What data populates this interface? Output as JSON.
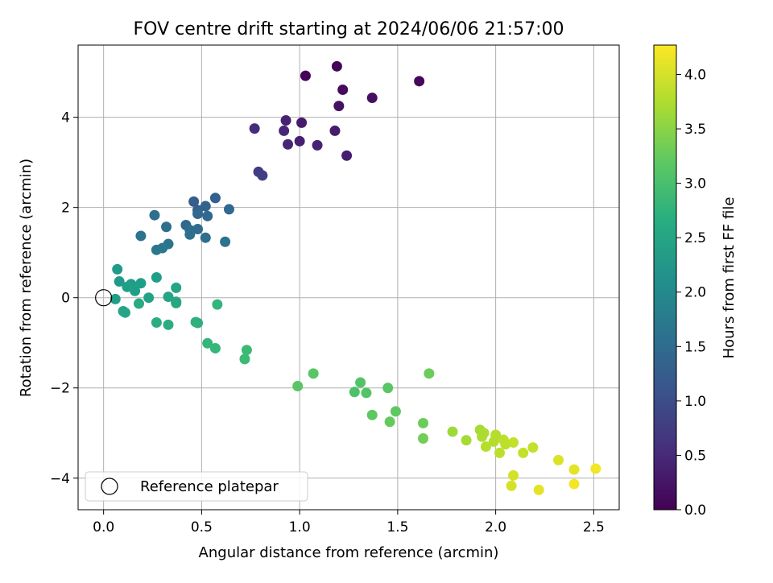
{
  "chart_data": {
    "type": "scatter",
    "title": "FOV centre drift starting at 2024/06/06 21:57:00",
    "xlabel": "Angular distance from reference (arcmin)",
    "ylabel": "Rotation from reference (arcmin)",
    "xlim": [
      -0.13,
      2.63
    ],
    "ylim": [
      -4.7,
      5.6
    ],
    "x_ticks": [
      0.0,
      0.5,
      1.0,
      1.5,
      2.0,
      2.5
    ],
    "x_tick_labels": [
      "0.0",
      "0.5",
      "1.0",
      "1.5",
      "2.0",
      "2.5"
    ],
    "y_ticks": [
      -4,
      -2,
      0,
      2,
      4
    ],
    "y_tick_labels": [
      "−4",
      "−2",
      "0",
      "2",
      "4"
    ],
    "grid": true,
    "colormap": "viridis",
    "colorbar": {
      "label": "Hours from first FF file",
      "range": [
        0.0,
        4.27
      ],
      "ticks": [
        0.0,
        0.5,
        1.0,
        1.5,
        2.0,
        2.5,
        3.0,
        3.5,
        4.0
      ],
      "tick_labels": [
        "0.0",
        "0.5",
        "1.0",
        "1.5",
        "2.0",
        "2.5",
        "3.0",
        "3.5",
        "4.0"
      ]
    },
    "legend": {
      "placement": "lower-left",
      "entries": [
        {
          "label": "Reference platepar",
          "marker": "open-circle"
        }
      ]
    },
    "reference_point": {
      "x": 0.0,
      "y": 0.0
    },
    "series": [
      {
        "points": [
          {
            "x": 1.03,
            "y": 4.92,
            "c": 0.05
          },
          {
            "x": 1.19,
            "y": 5.13,
            "c": 0.05
          },
          {
            "x": 1.61,
            "y": 4.8,
            "c": 0.08
          },
          {
            "x": 1.22,
            "y": 4.61,
            "c": 0.12
          },
          {
            "x": 1.37,
            "y": 4.43,
            "c": 0.18
          },
          {
            "x": 1.2,
            "y": 4.25,
            "c": 0.2
          },
          {
            "x": 0.93,
            "y": 3.93,
            "c": 0.4
          },
          {
            "x": 1.01,
            "y": 3.88,
            "c": 0.3
          },
          {
            "x": 0.77,
            "y": 3.75,
            "c": 0.55
          },
          {
            "x": 0.92,
            "y": 3.7,
            "c": 0.45
          },
          {
            "x": 1.18,
            "y": 3.7,
            "c": 0.33
          },
          {
            "x": 1.0,
            "y": 3.47,
            "c": 0.38
          },
          {
            "x": 0.94,
            "y": 3.4,
            "c": 0.45
          },
          {
            "x": 1.09,
            "y": 3.38,
            "c": 0.4
          },
          {
            "x": 1.24,
            "y": 3.15,
            "c": 0.35
          },
          {
            "x": 0.79,
            "y": 2.79,
            "c": 0.75
          },
          {
            "x": 0.81,
            "y": 2.71,
            "c": 0.8
          },
          {
            "x": 0.57,
            "y": 2.21,
            "c": 1.3
          },
          {
            "x": 0.46,
            "y": 2.13,
            "c": 1.25
          },
          {
            "x": 0.52,
            "y": 2.03,
            "c": 1.35
          },
          {
            "x": 0.48,
            "y": 1.94,
            "c": 1.3
          },
          {
            "x": 0.64,
            "y": 1.96,
            "c": 1.45
          },
          {
            "x": 0.48,
            "y": 1.86,
            "c": 1.4
          },
          {
            "x": 0.26,
            "y": 1.83,
            "c": 1.55
          },
          {
            "x": 0.53,
            "y": 1.81,
            "c": 1.45
          },
          {
            "x": 0.42,
            "y": 1.61,
            "c": 1.45
          },
          {
            "x": 0.32,
            "y": 1.57,
            "c": 1.55
          },
          {
            "x": 0.44,
            "y": 1.5,
            "c": 1.5
          },
          {
            "x": 0.48,
            "y": 1.52,
            "c": 1.5
          },
          {
            "x": 0.44,
            "y": 1.4,
            "c": 1.55
          },
          {
            "x": 0.19,
            "y": 1.37,
            "c": 1.6
          },
          {
            "x": 0.52,
            "y": 1.33,
            "c": 1.55
          },
          {
            "x": 0.62,
            "y": 1.24,
            "c": 1.6
          },
          {
            "x": 0.33,
            "y": 1.19,
            "c": 1.65
          },
          {
            "x": 0.3,
            "y": 1.1,
            "c": 1.7
          },
          {
            "x": 0.27,
            "y": 1.06,
            "c": 1.7
          },
          {
            "x": 0.07,
            "y": 0.63,
            "c": 2.3
          },
          {
            "x": 0.27,
            "y": 0.45,
            "c": 2.4
          },
          {
            "x": 0.08,
            "y": 0.36,
            "c": 2.3
          },
          {
            "x": 0.19,
            "y": 0.32,
            "c": 2.4
          },
          {
            "x": 0.14,
            "y": 0.3,
            "c": 2.35
          },
          {
            "x": 0.12,
            "y": 0.24,
            "c": 2.4
          },
          {
            "x": 0.37,
            "y": 0.22,
            "c": 2.5
          },
          {
            "x": 0.16,
            "y": 0.15,
            "c": 2.4
          },
          {
            "x": 0.33,
            "y": 0.02,
            "c": 2.5
          },
          {
            "x": 0.23,
            "y": 0.0,
            "c": 2.45
          },
          {
            "x": 0.06,
            "y": -0.03,
            "c": 2.4
          },
          {
            "x": 0.37,
            "y": -0.09,
            "c": 2.55
          },
          {
            "x": 0.37,
            "y": -0.12,
            "c": 2.55
          },
          {
            "x": 0.18,
            "y": -0.13,
            "c": 2.6
          },
          {
            "x": 0.58,
            "y": -0.15,
            "c": 2.8
          },
          {
            "x": 0.1,
            "y": -0.3,
            "c": 2.5
          },
          {
            "x": 0.11,
            "y": -0.33,
            "c": 2.5
          },
          {
            "x": 0.27,
            "y": -0.55,
            "c": 2.65
          },
          {
            "x": 0.47,
            "y": -0.54,
            "c": 2.7
          },
          {
            "x": 0.48,
            "y": -0.56,
            "c": 2.7
          },
          {
            "x": 0.33,
            "y": -0.6,
            "c": 2.65
          },
          {
            "x": 0.53,
            "y": -1.01,
            "c": 2.8
          },
          {
            "x": 0.57,
            "y": -1.12,
            "c": 2.85
          },
          {
            "x": 0.73,
            "y": -1.16,
            "c": 2.9
          },
          {
            "x": 0.72,
            "y": -1.36,
            "c": 2.9
          },
          {
            "x": 1.07,
            "y": -1.68,
            "c": 3.15
          },
          {
            "x": 1.66,
            "y": -1.68,
            "c": 3.3
          },
          {
            "x": 1.31,
            "y": -1.88,
            "c": 3.1
          },
          {
            "x": 0.99,
            "y": -1.96,
            "c": 3.15
          },
          {
            "x": 1.45,
            "y": -2.0,
            "c": 3.15
          },
          {
            "x": 1.28,
            "y": -2.09,
            "c": 3.05
          },
          {
            "x": 1.34,
            "y": -2.11,
            "c": 3.1
          },
          {
            "x": 1.49,
            "y": -2.52,
            "c": 3.2
          },
          {
            "x": 1.37,
            "y": -2.6,
            "c": 3.2
          },
          {
            "x": 1.46,
            "y": -2.75,
            "c": 3.25
          },
          {
            "x": 1.63,
            "y": -2.78,
            "c": 3.3
          },
          {
            "x": 1.63,
            "y": -3.12,
            "c": 3.35
          },
          {
            "x": 1.92,
            "y": -2.93,
            "c": 3.7
          },
          {
            "x": 1.78,
            "y": -2.97,
            "c": 3.65
          },
          {
            "x": 1.94,
            "y": -3.0,
            "c": 3.75
          },
          {
            "x": 2.0,
            "y": -3.04,
            "c": 3.8
          },
          {
            "x": 1.93,
            "y": -3.08,
            "c": 3.75
          },
          {
            "x": 2.04,
            "y": -3.15,
            "c": 3.85
          },
          {
            "x": 1.85,
            "y": -3.16,
            "c": 3.7
          },
          {
            "x": 2.09,
            "y": -3.21,
            "c": 3.9
          },
          {
            "x": 1.99,
            "y": -3.19,
            "c": 3.8
          },
          {
            "x": 2.05,
            "y": -3.25,
            "c": 3.85
          },
          {
            "x": 1.95,
            "y": -3.3,
            "c": 3.8
          },
          {
            "x": 2.19,
            "y": -3.32,
            "c": 3.9
          },
          {
            "x": 2.02,
            "y": -3.44,
            "c": 3.85
          },
          {
            "x": 2.14,
            "y": -3.44,
            "c": 3.9
          },
          {
            "x": 2.32,
            "y": -3.6,
            "c": 4.05
          },
          {
            "x": 2.51,
            "y": -3.79,
            "c": 4.2
          },
          {
            "x": 2.4,
            "y": -3.81,
            "c": 4.1
          },
          {
            "x": 2.09,
            "y": -3.94,
            "c": 4.0
          },
          {
            "x": 2.4,
            "y": -4.13,
            "c": 4.2
          },
          {
            "x": 2.08,
            "y": -4.17,
            "c": 4.0
          },
          {
            "x": 2.22,
            "y": -4.26,
            "c": 4.1
          }
        ]
      }
    ]
  }
}
